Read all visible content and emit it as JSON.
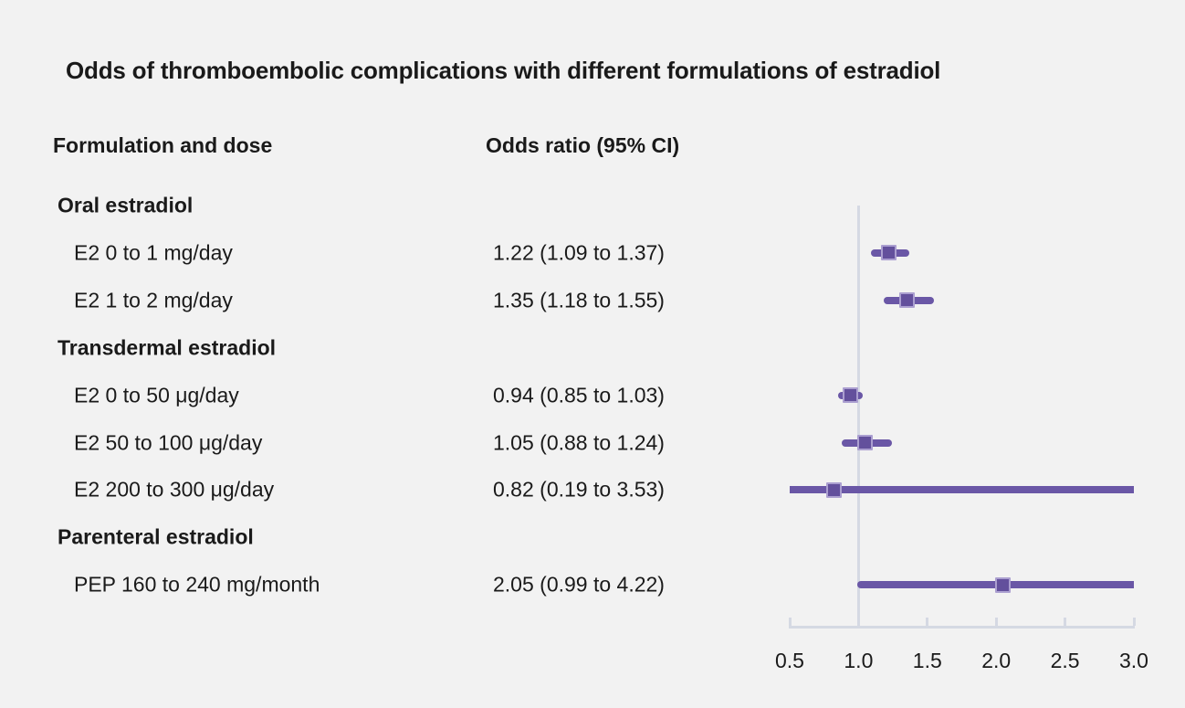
{
  "figure": {
    "title": "Odds of thromboembolic complications with different formulations of estradiol",
    "col_headers": {
      "formulation": "Formulation and dose",
      "odds_ratio": "Odds ratio (95% CI)"
    }
  },
  "chart_data": {
    "type": "scatter",
    "subtype": "forest-plot",
    "title": "Odds of thromboembolic complications with different formulations of estradiol",
    "xlabel": "Odds ratio (95% CI)",
    "x_axis": {
      "range": [
        0.5,
        3.0
      ],
      "ticks": [
        0.5,
        1.0,
        1.5,
        2.0,
        2.5,
        3.0
      ],
      "tick_labels": [
        "0.5",
        "1.0",
        "1.5",
        "2.0",
        "2.5",
        "3.0"
      ],
      "reference_line": 1.0,
      "note": "CI bars are clipped at axis limits 0.5 and 3.0"
    },
    "rows": [
      {
        "type": "group",
        "label": "Oral estradiol"
      },
      {
        "type": "item",
        "label": "E2 0 to 1 mg/day",
        "value_text": "1.22 (1.09 to 1.37)",
        "or": 1.22,
        "ci_low": 1.09,
        "ci_high": 1.37
      },
      {
        "type": "item",
        "label": "E2 1 to 2 mg/day",
        "value_text": "1.35 (1.18 to 1.55)",
        "or": 1.35,
        "ci_low": 1.18,
        "ci_high": 1.55
      },
      {
        "type": "group",
        "label": "Transdermal estradiol"
      },
      {
        "type": "item",
        "label": "E2 0 to 50 μg/day",
        "value_text": "0.94 (0.85 to 1.03)",
        "or": 0.94,
        "ci_low": 0.85,
        "ci_high": 1.03
      },
      {
        "type": "item",
        "label": "E2 50 to 100 μg/day",
        "value_text": "1.05 (0.88 to 1.24)",
        "or": 1.05,
        "ci_low": 0.88,
        "ci_high": 1.24
      },
      {
        "type": "item",
        "label": "E2 200 to 300 μg/day",
        "value_text": "0.82 (0.19 to 3.53)",
        "or": 0.82,
        "ci_low": 0.19,
        "ci_high": 3.53
      },
      {
        "type": "group",
        "label": "Parenteral estradiol"
      },
      {
        "type": "item",
        "label": "PEP 160 to 240 mg/month",
        "value_text": "2.05 (0.99 to 4.22)",
        "or": 2.05,
        "ci_low": 0.99,
        "ci_high": 4.22
      }
    ],
    "colors": {
      "ci_line": "#6a57a6",
      "marker_fill": "#63509c",
      "marker_border": "#ab9fd0",
      "axis": "#d5d9e3",
      "background": "#f2f2f2",
      "text": "#1a1a1a"
    },
    "legend": null,
    "grid": false
  }
}
